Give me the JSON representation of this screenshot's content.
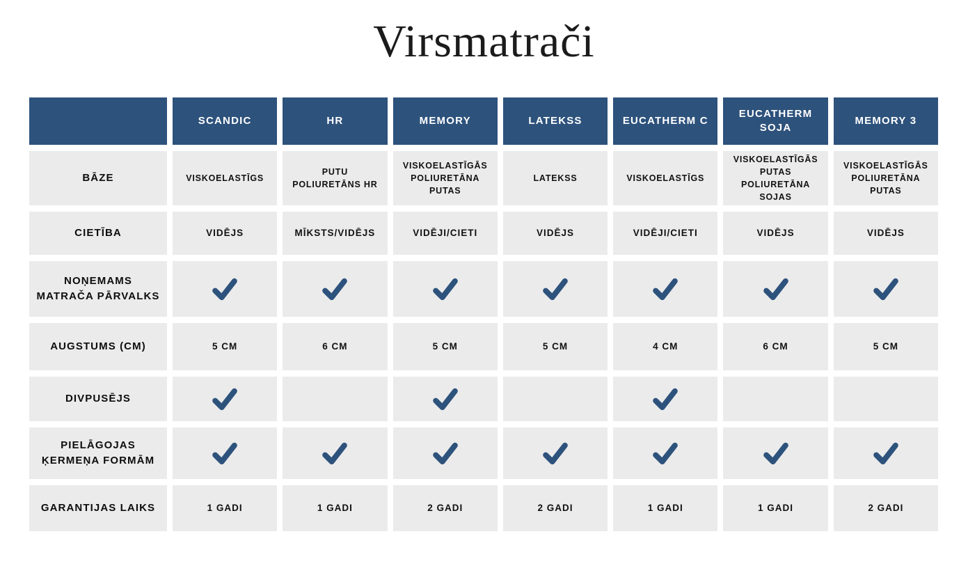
{
  "title": "Virsmatrači",
  "colors": {
    "page_bg": "#ffffff",
    "header_bg": "#2d527c",
    "header_text": "#ffffff",
    "cell_bg": "#ebebeb",
    "text": "#111111",
    "check": "#2d527c"
  },
  "icons": {
    "check": "check-icon"
  },
  "chart_data": {
    "type": "table",
    "title": "Virsmatrači",
    "columns": [
      "SCANDIC",
      "HR",
      "MEMORY",
      "LATEKSS",
      "EUCATHERM C",
      "EUCATHERM SOJA",
      "MEMORY 3"
    ],
    "rows": [
      {
        "label": "BĀZE",
        "kind": "text",
        "values": [
          "VISKOELASTĪGS",
          "PUTU POLIURETĀNS HR",
          "VISKOELASTĪGĀS POLIURETĀNA PUTAS",
          "LATEKSS",
          "VISKOELASTĪGS",
          "VISKOELASTĪGĀS PUTAS POLIURETĀNA SOJAS",
          "VISKOELASTĪGĀS POLIURETĀNA PUTAS"
        ]
      },
      {
        "label": "CIETĪBA",
        "kind": "text",
        "values": [
          "VIDĒJS",
          "MĪKSTS/VIDĒJS",
          "VIDĒJI/CIETI",
          "VIDĒJS",
          "VIDĒJI/CIETI",
          "VIDĒJS",
          "VIDĒJS"
        ]
      },
      {
        "label": "NOŅEMAMS MATRAČA PĀRVALKS",
        "kind": "check",
        "values": [
          true,
          true,
          true,
          true,
          true,
          true,
          true
        ]
      },
      {
        "label": "AUGSTUMS (CM)",
        "kind": "text",
        "values": [
          "5 CM",
          "6 CM",
          "5 CM",
          "5 CM",
          "4 CM",
          "6 CM",
          "5 CM"
        ]
      },
      {
        "label": "DIVPUSĒJS",
        "kind": "check",
        "values": [
          true,
          false,
          true,
          false,
          true,
          false,
          false
        ]
      },
      {
        "label": "PIELĀGOJAS ĶERMEŅA FORMĀM",
        "kind": "check",
        "values": [
          true,
          true,
          true,
          true,
          true,
          true,
          true
        ]
      },
      {
        "label": "GARANTIJAS LAIKS",
        "kind": "text",
        "values": [
          "1 GADI",
          "1 GADI",
          "2 GADI",
          "2 GADI",
          "1 GADI",
          "1 GADI",
          "2 GADI"
        ]
      }
    ]
  }
}
